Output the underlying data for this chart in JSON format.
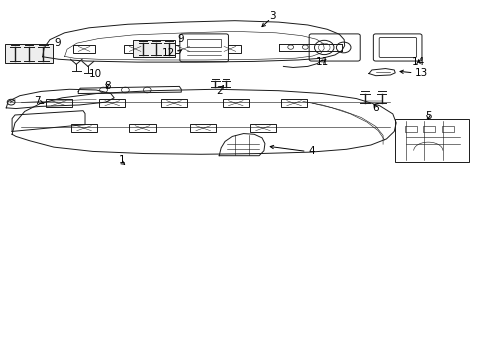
{
  "background_color": "#ffffff",
  "line_color": "#1a1a1a",
  "fig_width": 4.89,
  "fig_height": 3.6,
  "dpi": 100,
  "lw": 0.7
}
